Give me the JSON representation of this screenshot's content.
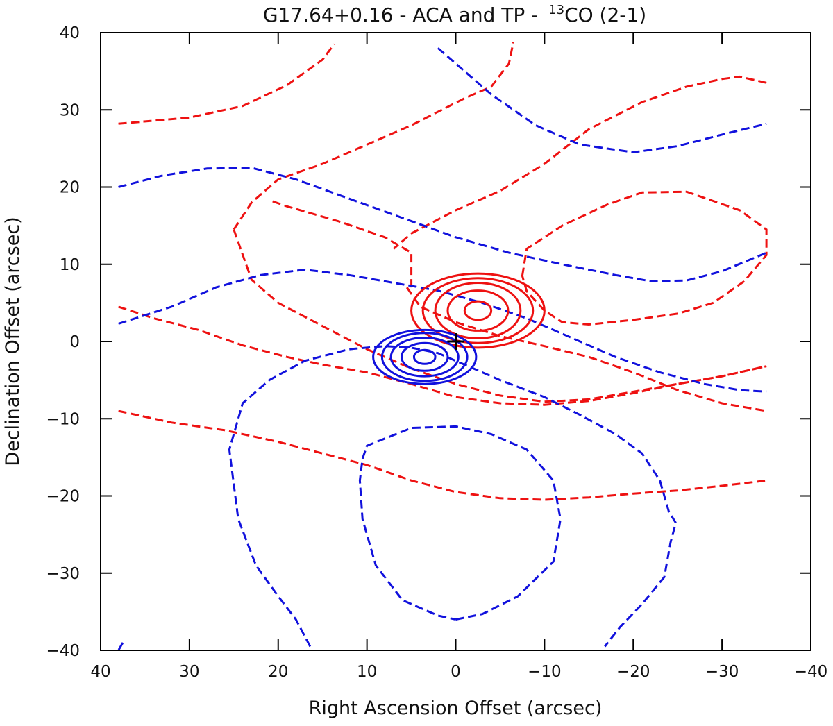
{
  "chart_data": {
    "type": "contour",
    "title_main": "G17.64+0.16 - ACA and TP - ",
    "title_isotope_sup": "13",
    "title_molecule": "CO (2-1)",
    "xlabel": "Right Ascension Offset (arcsec)",
    "ylabel": "Declination Offset (arcsec)",
    "xlim": [
      40,
      -40
    ],
    "ylim": [
      -40,
      40
    ],
    "xticks": [
      40,
      30,
      20,
      10,
      0,
      -10,
      -20,
      -30,
      -40
    ],
    "yticks": [
      40,
      30,
      20,
      10,
      0,
      -10,
      -20,
      -30,
      -40
    ],
    "xtick_labels": [
      "40",
      "30",
      "20",
      "10",
      "0",
      "−10",
      "−20",
      "−30",
      "−40"
    ],
    "ytick_labels": [
      "40",
      "30",
      "20",
      "10",
      "0",
      "−10",
      "−20",
      "−30",
      "−40"
    ],
    "source_marker": {
      "symbol": "+",
      "x": 0,
      "y": 0,
      "color": "#000000"
    },
    "colors": {
      "redshifted": "#ee1111",
      "blueshifted": "#1111dd"
    },
    "series": [
      {
        "name": "red-tp-1",
        "color": "redshifted",
        "style": "dashed",
        "points": [
          [
            38,
            28.2
          ],
          [
            30,
            29
          ],
          [
            24,
            30.5
          ],
          [
            19,
            33.2
          ],
          [
            15,
            36.5
          ],
          [
            13.7,
            38.5
          ]
        ]
      },
      {
        "name": "red-tp-2",
        "color": "redshifted",
        "style": "dashed",
        "points": [
          [
            25,
            14.5
          ],
          [
            23,
            18
          ],
          [
            20,
            21
          ],
          [
            15,
            23
          ],
          [
            10,
            25.5
          ],
          [
            5,
            28
          ],
          [
            -1,
            31.5
          ],
          [
            -4,
            33
          ],
          [
            -6,
            36
          ],
          [
            -6.5,
            38.8
          ]
        ]
      },
      {
        "name": "red-tp-3",
        "color": "redshifted",
        "style": "dashed",
        "points": [
          [
            25,
            14.5
          ],
          [
            23,
            8
          ],
          [
            20,
            5
          ],
          [
            15,
            2
          ],
          [
            10,
            -1
          ],
          [
            5,
            -3.5
          ],
          [
            0,
            -5.5
          ],
          [
            -5,
            -7
          ],
          [
            -10,
            -7.8
          ],
          [
            -15,
            -7.5
          ],
          [
            -20,
            -6.5
          ],
          [
            -25,
            -5.5
          ],
          [
            -30,
            -4.5
          ],
          [
            -35,
            -3.2
          ]
        ]
      },
      {
        "name": "red-tp-4",
        "color": "redshifted",
        "style": "dashed",
        "points": [
          [
            38,
            4.5
          ],
          [
            34,
            3
          ],
          [
            29,
            1.5
          ],
          [
            24,
            -0.5
          ],
          [
            19,
            -2
          ],
          [
            15,
            -3
          ],
          [
            10,
            -4
          ],
          [
            5,
            -5.5
          ],
          [
            0,
            -7.2
          ],
          [
            -5,
            -8
          ],
          [
            -10,
            -8.2
          ],
          [
            -15,
            -7.7
          ],
          [
            -20,
            -6.7
          ],
          [
            -25,
            -5.5
          ],
          [
            -30,
            -4.5
          ],
          [
            -35,
            -3.2
          ]
        ]
      },
      {
        "name": "red-tp-5",
        "color": "redshifted",
        "style": "dashed",
        "points": [
          [
            38,
            -9
          ],
          [
            32,
            -10.5
          ],
          [
            26,
            -11.5
          ],
          [
            20,
            -13
          ],
          [
            15,
            -14.5
          ],
          [
            10,
            -16
          ],
          [
            5,
            -18
          ],
          [
            0,
            -19.5
          ],
          [
            -5,
            -20.3
          ],
          [
            -10,
            -20.5
          ],
          [
            -15,
            -20.2
          ],
          [
            -20,
            -19.7
          ],
          [
            -25,
            -19.3
          ],
          [
            -30,
            -18.7
          ],
          [
            -35,
            -18
          ]
        ]
      },
      {
        "name": "red-tp-6",
        "color": "redshifted",
        "style": "dashed",
        "points": [
          [
            5,
            7
          ],
          [
            5,
            11.5
          ],
          [
            8,
            13.5
          ],
          [
            13,
            15.5
          ],
          [
            19,
            17.5
          ],
          [
            21,
            18.3
          ]
        ]
      },
      {
        "name": "red-tp-7",
        "color": "redshifted",
        "style": "dashed",
        "points": [
          [
            5.5,
            7
          ],
          [
            4,
            4.5
          ],
          [
            0,
            2.5
          ],
          [
            -5,
            0.7
          ],
          [
            -10,
            -0.6
          ],
          [
            -15,
            -2
          ],
          [
            -20,
            -4
          ],
          [
            -25,
            -6.3
          ],
          [
            -30,
            -8
          ],
          [
            -35,
            -9
          ]
        ]
      },
      {
        "name": "red-tp-8",
        "color": "redshifted",
        "style": "dashed",
        "points": [
          [
            -7.5,
            8.5
          ],
          [
            -8,
            12
          ],
          [
            -12,
            15
          ],
          [
            -17,
            17.7
          ],
          [
            -21,
            19.3
          ],
          [
            -26,
            19.4
          ],
          [
            -29,
            18.2
          ],
          [
            -32,
            17
          ],
          [
            -35,
            14.5
          ],
          [
            -35,
            11.2
          ],
          [
            -32.5,
            7.8
          ],
          [
            -29,
            5
          ],
          [
            -25,
            3.6
          ],
          [
            -20,
            2.8
          ],
          [
            -15,
            2.2
          ],
          [
            -12,
            2.5
          ],
          [
            -10,
            4
          ],
          [
            -8,
            6.5
          ],
          [
            -7.5,
            8.5
          ]
        ]
      },
      {
        "name": "red-tp-9",
        "color": "redshifted",
        "style": "dashed",
        "points": [
          [
            -35,
            33.5
          ],
          [
            -32,
            34.3
          ],
          [
            -30,
            34
          ],
          [
            -26,
            33
          ],
          [
            -21,
            31
          ],
          [
            -15,
            27.5
          ],
          [
            -10,
            23
          ],
          [
            -5,
            19.5
          ],
          [
            0,
            17
          ],
          [
            5,
            14
          ],
          [
            7,
            12
          ]
        ]
      },
      {
        "name": "blue-tp-1",
        "color": "blueshifted",
        "style": "dashed",
        "points": [
          [
            2,
            38
          ],
          [
            0,
            36
          ],
          [
            -4,
            32
          ],
          [
            -9,
            28
          ],
          [
            -14,
            25.5
          ],
          [
            -20,
            24.5
          ],
          [
            -25,
            25.3
          ],
          [
            -30,
            26.8
          ],
          [
            -35,
            28.2
          ]
        ]
      },
      {
        "name": "blue-tp-2",
        "color": "blueshifted",
        "style": "dashed",
        "points": [
          [
            38,
            20
          ],
          [
            33,
            21.5
          ],
          [
            28,
            22.4
          ],
          [
            23,
            22.5
          ],
          [
            18,
            21
          ],
          [
            12,
            18.5
          ],
          [
            6,
            16
          ],
          [
            0,
            13.5
          ],
          [
            -6,
            11.5
          ],
          [
            -12,
            10
          ],
          [
            -18,
            8.6
          ],
          [
            -22,
            7.8
          ],
          [
            -26,
            7.9
          ],
          [
            -30,
            9.1
          ],
          [
            -35,
            11.5
          ]
        ]
      },
      {
        "name": "blue-tp-3",
        "color": "blueshifted",
        "style": "dashed",
        "points": [
          [
            38,
            2.3
          ],
          [
            32,
            4.5
          ],
          [
            27,
            7
          ],
          [
            22,
            8.6
          ],
          [
            17,
            9.3
          ],
          [
            12,
            8.6
          ],
          [
            7,
            7.6
          ],
          [
            2,
            6.6
          ],
          [
            -3,
            5
          ],
          [
            -8,
            3
          ],
          [
            -13,
            0.5
          ],
          [
            -18,
            -2
          ],
          [
            -23,
            -4
          ],
          [
            -28,
            -5.5
          ],
          [
            -32,
            -6.3
          ],
          [
            -35,
            -6.5
          ]
        ]
      },
      {
        "name": "blue-tp-4",
        "color": "blueshifted",
        "style": "dashed",
        "points": [
          [
            16.4,
            -39.5
          ],
          [
            18,
            -36
          ],
          [
            20,
            -33
          ],
          [
            22.5,
            -29
          ],
          [
            24.5,
            -23
          ],
          [
            25.5,
            -14
          ],
          [
            24,
            -8
          ],
          [
            21,
            -5
          ],
          [
            17,
            -2.5
          ],
          [
            12,
            -1
          ],
          [
            8,
            -0.6
          ],
          [
            5,
            -0.8
          ],
          [
            2,
            -1.5
          ],
          [
            -1,
            -3
          ],
          [
            -5,
            -5
          ],
          [
            -10,
            -7.2
          ],
          [
            -14,
            -9.5
          ],
          [
            -18,
            -12
          ],
          [
            -21,
            -14.5
          ],
          [
            -23,
            -18
          ],
          [
            -24,
            -22
          ],
          [
            -24.8,
            -23.5
          ],
          [
            -24.2,
            -26
          ],
          [
            -23.5,
            -30.5
          ],
          [
            -21,
            -34
          ],
          [
            -18.5,
            -37
          ],
          [
            -16.8,
            -39.5
          ]
        ]
      },
      {
        "name": "blue-tp-5",
        "color": "blueshifted",
        "style": "dashed",
        "points": [
          [
            0,
            -36
          ],
          [
            -3,
            -35.3
          ],
          [
            -7,
            -33
          ],
          [
            -11,
            -28.5
          ],
          [
            -11.8,
            -23
          ],
          [
            -11,
            -18
          ],
          [
            -8,
            -14
          ],
          [
            -4,
            -12
          ],
          [
            0,
            -11
          ],
          [
            5,
            -11.2
          ],
          [
            10,
            -13.5
          ],
          [
            10.5,
            -15.2
          ],
          [
            10.8,
            -18
          ],
          [
            10.5,
            -23
          ],
          [
            9,
            -29
          ],
          [
            6,
            -33.5
          ],
          [
            2,
            -35.5
          ],
          [
            0,
            -36
          ]
        ]
      },
      {
        "name": "blue-tp-6",
        "color": "blueshifted",
        "style": "dashed",
        "points": [
          [
            37.5,
            -39
          ],
          [
            38,
            -40
          ]
        ]
      }
    ],
    "peaks": [
      {
        "name": "red-aca",
        "color": "redshifted",
        "style": "solid",
        "center": [
          -2.5,
          4
        ],
        "levels_radii": [
          [
            1.5,
            1.2
          ],
          [
            3.4,
            2.6
          ],
          [
            4.8,
            3.6
          ],
          [
            6.2,
            4.2
          ],
          [
            7.5,
            4.8
          ]
        ]
      },
      {
        "name": "blue-aca",
        "color": "blueshifted",
        "style": "solid",
        "center": [
          3.5,
          -2
        ],
        "levels_radii": [
          [
            1.2,
            0.9
          ],
          [
            2.6,
            1.8
          ],
          [
            3.8,
            2.5
          ],
          [
            4.8,
            3.1
          ],
          [
            5.8,
            3.5
          ]
        ]
      }
    ]
  }
}
